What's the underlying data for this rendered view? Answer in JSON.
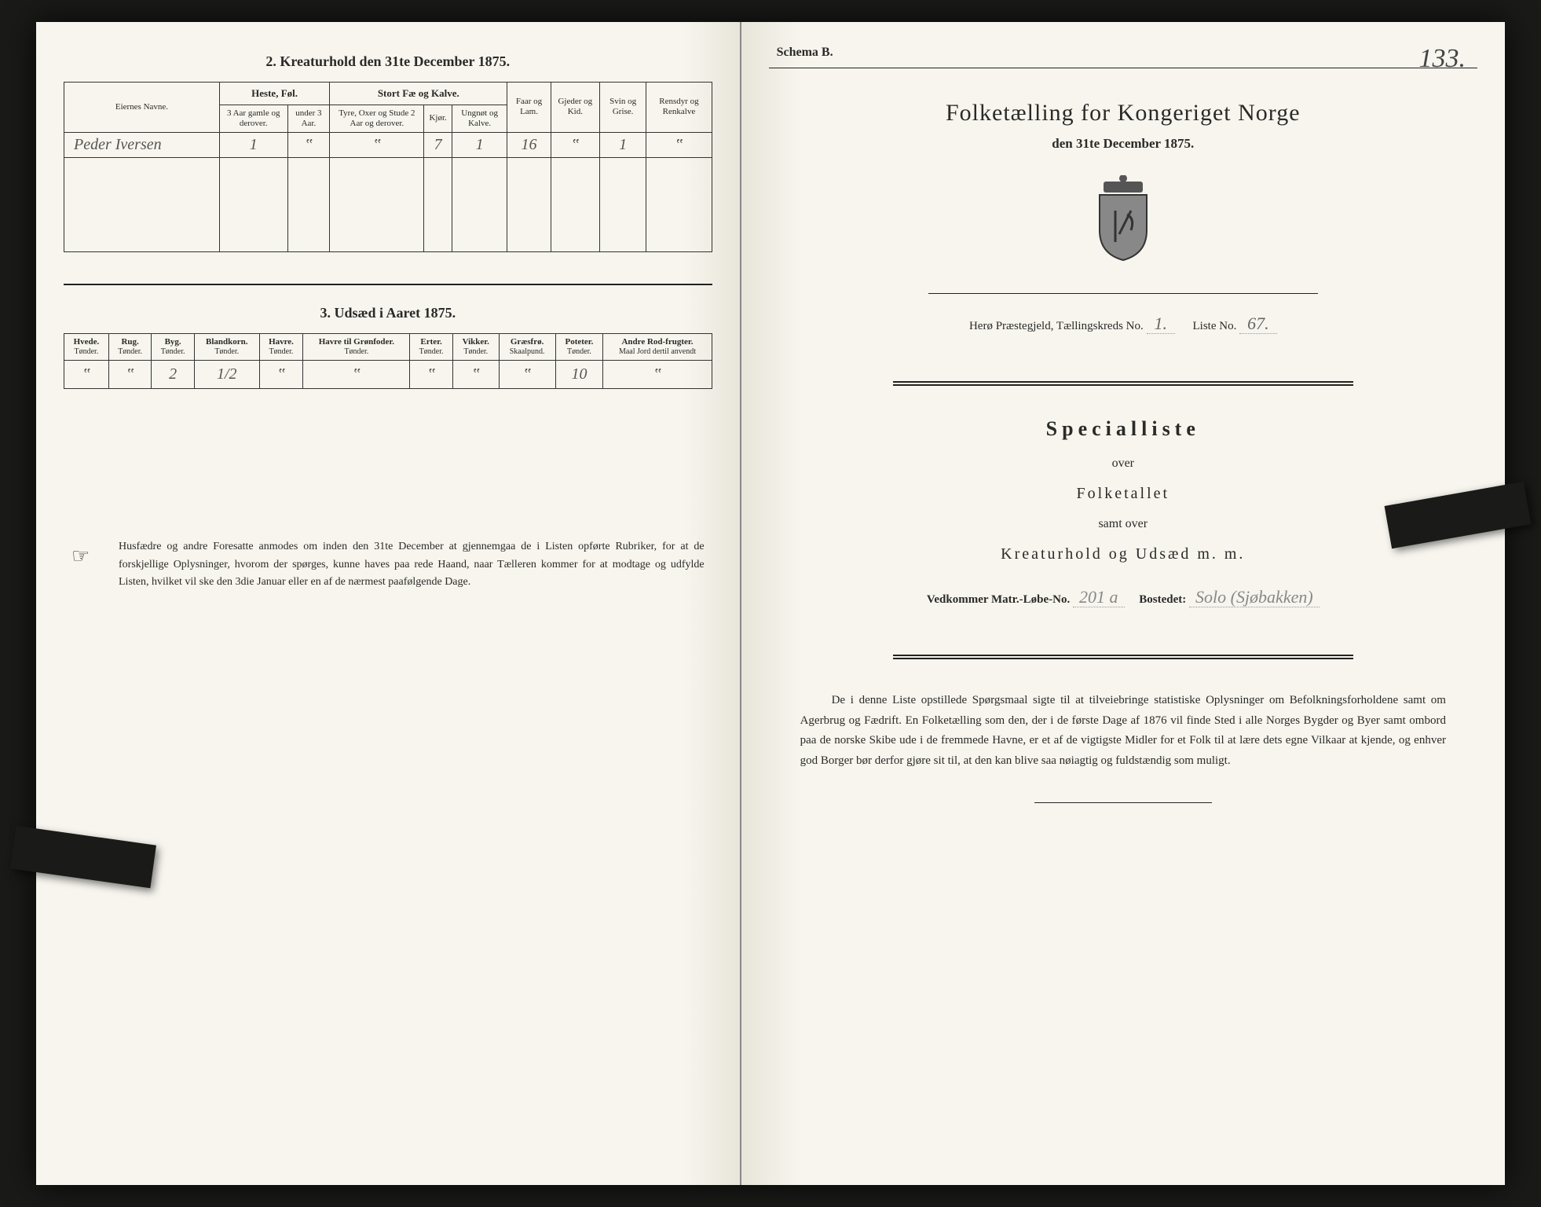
{
  "left": {
    "section2_title": "2. Kreaturhold den 31te December 1875.",
    "table1": {
      "col_eier": "Eiernes Navne.",
      "grp_heste": "Heste, Føl.",
      "grp_stort": "Stort Fæ og Kalve.",
      "col_h1": "3 Aar gamle og derover.",
      "col_h2": "under 3 Aar.",
      "col_s1": "Tyre, Oxer og Stude 2 Aar og derover.",
      "col_s2": "Kjør.",
      "col_s3": "Ungnøt og Kalve.",
      "col_faar": "Faar og Lam.",
      "col_gjed": "Gjeder og Kid.",
      "col_svin": "Svin og Grise.",
      "col_rens": "Rensdyr og Renkalve",
      "row": {
        "name": "Peder Iversen",
        "h1": "1",
        "h2": "‟",
        "s1": "‟",
        "s2": "7",
        "s3": "1",
        "faar": "16",
        "gjed": "‟",
        "svin": "1",
        "rens": "‟"
      }
    },
    "section3_title": "3. Udsæd i Aaret 1875.",
    "table2": {
      "cols": [
        {
          "t": "Hvede.",
          "s": "Tønder."
        },
        {
          "t": "Rug.",
          "s": "Tønder."
        },
        {
          "t": "Byg.",
          "s": "Tønder."
        },
        {
          "t": "Blandkorn.",
          "s": "Tønder."
        },
        {
          "t": "Havre.",
          "s": "Tønder."
        },
        {
          "t": "Havre til Grønfoder.",
          "s": "Tønder."
        },
        {
          "t": "Erter.",
          "s": "Tønder."
        },
        {
          "t": "Vikker.",
          "s": "Tønder."
        },
        {
          "t": "Græsfrø.",
          "s": "Skaalpund."
        },
        {
          "t": "Poteter.",
          "s": "Tønder."
        },
        {
          "t": "Andre Rod-frugter.",
          "s": "Maal Jord dertil anvendt"
        }
      ],
      "row": [
        "‟",
        "‟",
        "2",
        "1/2",
        "‟",
        "‟",
        "‟",
        "‟",
        "‟",
        "10",
        "‟"
      ]
    },
    "footnote": "Husfædre og andre Foresatte anmodes om inden den 31te December at gjennemgaa de i Listen opførte Rubriker, for at de forskjellige Oplysninger, hvorom der spørges, kunne haves paa rede Haand, naar Tælleren kommer for at modtage og udfylde Listen, hvilket vil ske den 3die Januar eller en af de nærmest paafølgende Dage."
  },
  "right": {
    "schema": "Schema B.",
    "page_num": "133.",
    "title": "Folketælling for Kongeriget Norge",
    "date": "den 31te December 1875.",
    "preste_label1": "Herø Præstegjeld, Tællingskreds No.",
    "preste_val1": "1.",
    "preste_label2": "Liste No.",
    "preste_val2": "67.",
    "special": "Specialliste",
    "over": "over",
    "folketallet": "Folketallet",
    "samt": "samt over",
    "kreatur": "Kreaturhold og Udsæd m. m.",
    "vedk_label1": "Vedkommer Matr.-Løbe-No.",
    "vedk_val1": "201 a",
    "vedk_label2": "Bostedet:",
    "vedk_val2": "Solo (Sjøbakken)",
    "bottom": "De i denne Liste opstillede Spørgsmaal sigte til at tilveiebringe statistiske Oplysninger om Befolkningsforholdene samt om Agerbrug og Fædrift. En Folketælling som den, der i de første Dage af 1876 vil finde Sted i alle Norges Bygder og Byer samt ombord paa de norske Skibe ude i de fremmede Havne, er et af de vigtigste Midler for et Folk til at lære dets egne Vilkaar at kjende, og enhver god Borger bør derfor gjøre sit til, at den kan blive saa nøiagtig og fuldstændig som muligt."
  },
  "colors": {
    "page_bg": "#f7f5ee",
    "ink": "#2a2a28",
    "hand": "#555555"
  }
}
